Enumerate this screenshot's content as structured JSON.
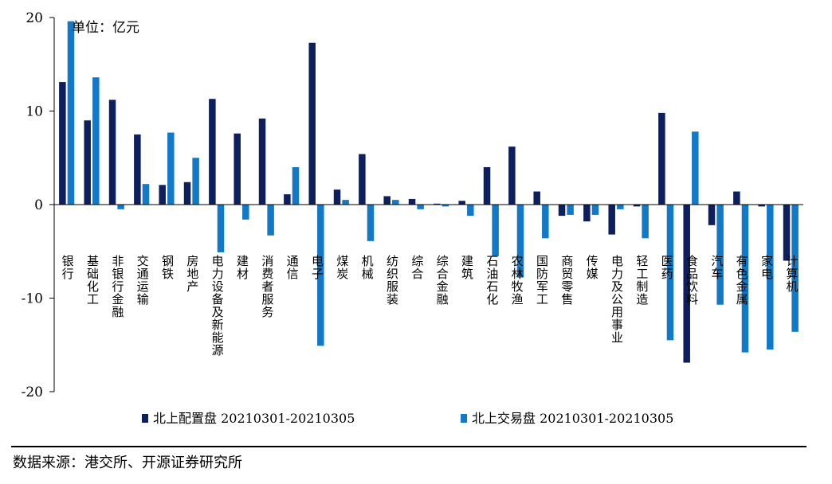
{
  "chart_data": {
    "type": "bar",
    "unit": "单位：亿元",
    "ylim": [
      -20,
      20
    ],
    "yticks": [
      -20,
      -10,
      0,
      10,
      20
    ],
    "grid": false,
    "legend_position": "bottom",
    "categories": [
      "银行",
      "基础化工",
      "非银行金融",
      "交通运输",
      "钢铁",
      "房地产",
      "电力设备及新能源",
      "建材",
      "消费者服务",
      "通信",
      "电子",
      "煤炭",
      "机械",
      "纺织服装",
      "综合",
      "综合金融",
      "建筑",
      "石油石化",
      "农林牧渔",
      "国防军工",
      "商贸零售",
      "传媒",
      "电力及公用事业",
      "轻工制造",
      "医药",
      "食品饮料",
      "汽车",
      "有色金属",
      "家电",
      "计算机"
    ],
    "series": [
      {
        "name": "北上配置盘 20210301-20210305",
        "color": "#0d1f5c",
        "values": [
          13.1,
          9.0,
          11.2,
          7.5,
          2.1,
          2.4,
          11.3,
          7.6,
          9.2,
          1.1,
          17.3,
          1.6,
          5.4,
          0.9,
          0.6,
          0.1,
          0.4,
          4.0,
          6.2,
          1.4,
          -1.2,
          -1.8,
          -3.2,
          -0.2,
          9.8,
          -16.9,
          -2.2,
          1.4,
          -0.2,
          -6.0
        ]
      },
      {
        "name": "北上交易盘 20210301-20210305",
        "color": "#1279c8",
        "values": [
          19.6,
          13.6,
          -0.5,
          2.2,
          7.7,
          5.0,
          -5.1,
          -1.6,
          -3.3,
          4.0,
          -15.1,
          0.5,
          -3.9,
          0.5,
          -0.5,
          -0.2,
          -1.2,
          -5.5,
          -7.8,
          -3.6,
          -1.1,
          -1.1,
          -0.5,
          -3.6,
          -14.5,
          7.8,
          -10.7,
          -15.8,
          -15.5,
          -13.6
        ]
      }
    ]
  },
  "source": {
    "text": "数据来源：港交所、开源证券研究所"
  }
}
